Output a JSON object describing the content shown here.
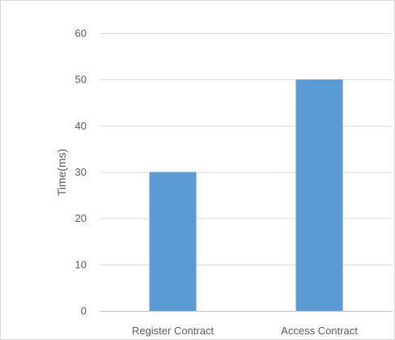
{
  "chart_data": {
    "type": "bar",
    "categories": [
      "Register Contract",
      "Access Contract"
    ],
    "values": [
      30,
      50
    ],
    "title": "",
    "xlabel": "",
    "ylabel": "Time(ms)",
    "ylim": [
      0,
      60
    ],
    "yticks": [
      0,
      10,
      20,
      30,
      40,
      50,
      60
    ],
    "grid": true,
    "legend": "none",
    "bar_color": "#5b9bd5",
    "grid_color": "#d9d9d9",
    "text_color": "#595959"
  }
}
